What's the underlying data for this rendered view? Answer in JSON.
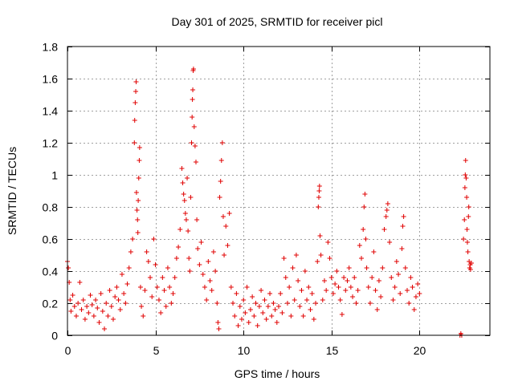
{
  "chart_data": {
    "type": "scatter",
    "title": "Day 301 of 2025, SRMTID for receiver picl",
    "xlabel": "GPS time / hours",
    "ylabel": "SRMTID / TECUs",
    "xlim": [
      0,
      24
    ],
    "ylim": [
      0,
      1.8
    ],
    "xticks": [
      0,
      5,
      10,
      15,
      20
    ],
    "xtick_labels": [
      "0",
      "5",
      "10",
      "15",
      "20"
    ],
    "yticks": [
      0,
      0.2,
      0.4,
      0.6,
      0.8,
      1,
      1.2,
      1.4,
      1.6,
      1.8
    ],
    "ytick_labels": [
      "0",
      "0.2",
      "0.4",
      "0.6",
      "0.8",
      "1",
      "1.2",
      "1.4",
      "1.6",
      "1.8"
    ],
    "grid": true,
    "marker": "plus",
    "marker_color": "#e00000",
    "series": [
      {
        "name": "SRMTID",
        "points": [
          [
            0.0,
            0.46
          ],
          [
            0.05,
            0.42
          ],
          [
            0.1,
            0.33
          ],
          [
            0.15,
            0.22
          ],
          [
            0.2,
            0.15
          ],
          [
            0.3,
            0.25
          ],
          [
            0.4,
            0.18
          ],
          [
            0.5,
            0.12
          ],
          [
            0.6,
            0.2
          ],
          [
            0.7,
            0.33
          ],
          [
            0.8,
            0.16
          ],
          [
            0.9,
            0.22
          ],
          [
            1.0,
            0.1
          ],
          [
            1.1,
            0.18
          ],
          [
            1.2,
            0.14
          ],
          [
            1.3,
            0.25
          ],
          [
            1.4,
            0.19
          ],
          [
            1.5,
            0.12
          ],
          [
            1.6,
            0.22
          ],
          [
            1.7,
            0.17
          ],
          [
            1.8,
            0.08
          ],
          [
            1.9,
            0.26
          ],
          [
            2.0,
            0.15
          ],
          [
            2.1,
            0.04
          ],
          [
            2.2,
            0.2
          ],
          [
            2.3,
            0.12
          ],
          [
            2.4,
            0.28
          ],
          [
            2.5,
            0.18
          ],
          [
            2.6,
            0.1
          ],
          [
            2.7,
            0.24
          ],
          [
            2.8,
            0.3
          ],
          [
            2.9,
            0.22
          ],
          [
            3.0,
            0.16
          ],
          [
            3.1,
            0.38
          ],
          [
            3.2,
            0.26
          ],
          [
            3.3,
            0.2
          ],
          [
            3.4,
            0.32
          ],
          [
            3.5,
            0.42
          ],
          [
            3.6,
            0.52
          ],
          [
            3.7,
            0.6
          ],
          [
            3.8,
            1.2
          ],
          [
            3.82,
            1.34
          ],
          [
            3.85,
            1.45
          ],
          [
            3.88,
            1.52
          ],
          [
            3.9,
            1.58
          ],
          [
            3.92,
            0.89
          ],
          [
            3.95,
            0.78
          ],
          [
            3.98,
            0.72
          ],
          [
            4.0,
            0.64
          ],
          [
            4.02,
            0.84
          ],
          [
            4.05,
            0.98
          ],
          [
            4.08,
            1.09
          ],
          [
            4.1,
            1.17
          ],
          [
            4.15,
            0.3
          ],
          [
            4.2,
            0.18
          ],
          [
            4.3,
            0.12
          ],
          [
            4.4,
            0.28
          ],
          [
            4.5,
            0.52
          ],
          [
            4.6,
            0.46
          ],
          [
            4.7,
            0.36
          ],
          [
            4.8,
            0.24
          ],
          [
            4.9,
            0.6
          ],
          [
            5.0,
            0.44
          ],
          [
            5.1,
            0.3
          ],
          [
            5.2,
            0.22
          ],
          [
            5.3,
            0.14
          ],
          [
            5.4,
            0.36
          ],
          [
            5.5,
            0.28
          ],
          [
            5.6,
            0.18
          ],
          [
            5.7,
            0.42
          ],
          [
            5.8,
            0.3
          ],
          [
            5.9,
            0.2
          ],
          [
            6.0,
            0.26
          ],
          [
            6.1,
            0.36
          ],
          [
            6.2,
            0.48
          ],
          [
            6.3,
            0.55
          ],
          [
            6.4,
            0.66
          ],
          [
            6.5,
            1.04
          ],
          [
            6.55,
            0.95
          ],
          [
            6.6,
            0.88
          ],
          [
            6.65,
            0.84
          ],
          [
            6.7,
            0.76
          ],
          [
            6.75,
            0.72
          ],
          [
            6.8,
            0.98
          ],
          [
            6.85,
            0.65
          ],
          [
            6.9,
            0.48
          ],
          [
            6.95,
            0.4
          ],
          [
            7.0,
            0.86
          ],
          [
            7.05,
            1.2
          ],
          [
            7.08,
            1.36
          ],
          [
            7.1,
            1.47
          ],
          [
            7.12,
            1.53
          ],
          [
            7.14,
            1.65
          ],
          [
            7.16,
            1.66
          ],
          [
            7.2,
            1.3
          ],
          [
            7.25,
            1.18
          ],
          [
            7.3,
            1.08
          ],
          [
            7.35,
            0.72
          ],
          [
            7.4,
            0.54
          ],
          [
            7.5,
            0.44
          ],
          [
            7.6,
            0.58
          ],
          [
            7.7,
            0.38
          ],
          [
            7.8,
            0.3
          ],
          [
            7.9,
            0.22
          ],
          [
            8.0,
            0.46
          ],
          [
            8.1,
            0.34
          ],
          [
            8.2,
            0.28
          ],
          [
            8.3,
            0.52
          ],
          [
            8.4,
            0.4
          ],
          [
            8.5,
            0.2
          ],
          [
            8.55,
            0.08
          ],
          [
            8.6,
            0.04
          ],
          [
            8.65,
            0.86
          ],
          [
            8.7,
            0.96
          ],
          [
            8.75,
            1.09
          ],
          [
            8.8,
            1.2
          ],
          [
            8.85,
            0.74
          ],
          [
            8.9,
            0.5
          ],
          [
            9.0,
            0.68
          ],
          [
            9.1,
            0.56
          ],
          [
            9.2,
            0.76
          ],
          [
            9.3,
            0.3
          ],
          [
            9.4,
            0.2
          ],
          [
            9.5,
            0.12
          ],
          [
            9.6,
            0.26
          ],
          [
            9.7,
            0.06
          ],
          [
            9.8,
            0.18
          ],
          [
            9.9,
            0.1
          ],
          [
            10.0,
            0.22
          ],
          [
            10.1,
            0.14
          ],
          [
            10.2,
            0.3
          ],
          [
            10.3,
            0.08
          ],
          [
            10.4,
            0.16
          ],
          [
            10.5,
            0.24
          ],
          [
            10.6,
            0.12
          ],
          [
            10.7,
            0.2
          ],
          [
            10.8,
            0.06
          ],
          [
            10.9,
            0.18
          ],
          [
            11.0,
            0.28
          ],
          [
            11.1,
            0.14
          ],
          [
            11.2,
            0.22
          ],
          [
            11.3,
            0.1
          ],
          [
            11.4,
            0.18
          ],
          [
            11.5,
            0.26
          ],
          [
            11.6,
            0.12
          ],
          [
            11.7,
            0.2
          ],
          [
            11.8,
            0.16
          ],
          [
            11.9,
            0.08
          ],
          [
            12.0,
            0.18
          ],
          [
            12.1,
            0.26
          ],
          [
            12.2,
            0.14
          ],
          [
            12.3,
            0.48
          ],
          [
            12.4,
            0.36
          ],
          [
            12.5,
            0.2
          ],
          [
            12.6,
            0.3
          ],
          [
            12.7,
            0.12
          ],
          [
            12.8,
            0.42
          ],
          [
            12.9,
            0.22
          ],
          [
            13.0,
            0.5
          ],
          [
            13.1,
            0.34
          ],
          [
            13.2,
            0.18
          ],
          [
            13.3,
            0.28
          ],
          [
            13.4,
            0.12
          ],
          [
            13.5,
            0.4
          ],
          [
            13.6,
            0.22
          ],
          [
            13.7,
            0.3
          ],
          [
            13.8,
            0.16
          ],
          [
            13.9,
            0.26
          ],
          [
            14.0,
            0.1
          ],
          [
            14.1,
            0.2
          ],
          [
            14.2,
            0.46
          ],
          [
            14.25,
            0.8
          ],
          [
            14.28,
            0.86
          ],
          [
            14.3,
            0.9
          ],
          [
            14.32,
            0.93
          ],
          [
            14.35,
            0.62
          ],
          [
            14.4,
            0.5
          ],
          [
            14.5,
            0.22
          ],
          [
            14.6,
            0.34
          ],
          [
            14.7,
            0.28
          ],
          [
            14.8,
            0.58
          ],
          [
            14.9,
            0.48
          ],
          [
            15.0,
            0.36
          ],
          [
            15.1,
            0.26
          ],
          [
            15.2,
            0.32
          ],
          [
            15.3,
            0.4
          ],
          [
            15.4,
            0.3
          ],
          [
            15.5,
            0.22
          ],
          [
            15.6,
            0.13
          ],
          [
            15.7,
            0.36
          ],
          [
            15.8,
            0.28
          ],
          [
            15.9,
            0.34
          ],
          [
            16.0,
            0.42
          ],
          [
            16.1,
            0.3
          ],
          [
            16.2,
            0.24
          ],
          [
            16.3,
            0.36
          ],
          [
            16.4,
            0.2
          ],
          [
            16.5,
            0.28
          ],
          [
            16.6,
            0.56
          ],
          [
            16.7,
            0.48
          ],
          [
            16.8,
            0.66
          ],
          [
            16.85,
            0.8
          ],
          [
            16.9,
            0.88
          ],
          [
            16.95,
            0.6
          ],
          [
            17.0,
            0.42
          ],
          [
            17.1,
            0.3
          ],
          [
            17.2,
            0.2
          ],
          [
            17.3,
            0.36
          ],
          [
            17.4,
            0.52
          ],
          [
            17.5,
            0.28
          ],
          [
            17.6,
            0.16
          ],
          [
            17.7,
            0.34
          ],
          [
            17.8,
            0.24
          ],
          [
            17.9,
            0.42
          ],
          [
            18.0,
            0.66
          ],
          [
            18.1,
            0.74
          ],
          [
            18.15,
            0.78
          ],
          [
            18.2,
            0.82
          ],
          [
            18.3,
            0.58
          ],
          [
            18.4,
            0.36
          ],
          [
            18.5,
            0.22
          ],
          [
            18.6,
            0.3
          ],
          [
            18.7,
            0.46
          ],
          [
            18.8,
            0.38
          ],
          [
            18.9,
            0.26
          ],
          [
            19.0,
            0.54
          ],
          [
            19.05,
            0.68
          ],
          [
            19.1,
            0.74
          ],
          [
            19.2,
            0.42
          ],
          [
            19.3,
            0.28
          ],
          [
            19.4,
            0.2
          ],
          [
            19.5,
            0.36
          ],
          [
            19.6,
            0.3
          ],
          [
            19.7,
            0.16
          ],
          [
            19.8,
            0.24
          ],
          [
            19.9,
            0.32
          ],
          [
            20.0,
            0.26
          ],
          [
            22.3,
            0.0
          ],
          [
            22.35,
            0.01
          ],
          [
            22.4,
            0.0
          ],
          [
            22.5,
            0.6
          ],
          [
            22.55,
            0.72
          ],
          [
            22.58,
            0.92
          ],
          [
            22.6,
            1.0
          ],
          [
            22.62,
            1.09
          ],
          [
            22.65,
            0.98
          ],
          [
            22.68,
            0.86
          ],
          [
            22.7,
            0.66
          ],
          [
            22.72,
            0.58
          ],
          [
            22.75,
            0.52
          ],
          [
            22.78,
            0.74
          ],
          [
            22.8,
            0.8
          ],
          [
            22.82,
            0.46
          ],
          [
            22.85,
            0.42
          ],
          [
            22.88,
            0.44
          ],
          [
            22.9,
            0.41
          ],
          [
            22.95,
            0.45
          ]
        ]
      }
    ]
  }
}
